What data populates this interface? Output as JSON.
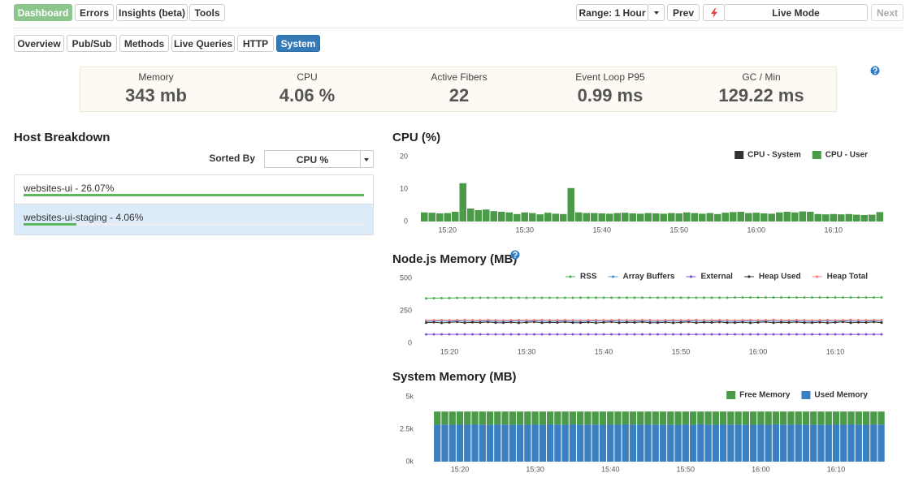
{
  "nav": {
    "tabs": [
      "Dashboard",
      "Errors",
      "Insights (beta)",
      "Tools"
    ],
    "range": "Range: 1 Hour",
    "prev": "Prev",
    "live_mode": "Live Mode",
    "next": "Next"
  },
  "subnav": {
    "tabs": [
      "Overview",
      "Pub/Sub",
      "Methods",
      "Live Queries",
      "HTTP",
      "System"
    ]
  },
  "stats": [
    {
      "label": "Memory",
      "value": "343 mb"
    },
    {
      "label": "CPU",
      "value": "4.06 %"
    },
    {
      "label": "Active Fibers",
      "value": "22"
    },
    {
      "label": "Event Loop P95",
      "value": "0.99 ms"
    },
    {
      "label": "GC / Min",
      "value": "129.22 ms"
    }
  ],
  "host_breakdown": {
    "title": "Host Breakdown",
    "sort_label": "Sorted By",
    "sort_value": "CPU %",
    "hosts": [
      {
        "label": "websites-ui - 26.07%",
        "value": 26.07
      },
      {
        "label": "websites-ui-staging - 4.06%",
        "value": 4.06
      }
    ]
  },
  "chart_data": [
    {
      "type": "bar",
      "title": "CPU (%)",
      "stacked": true,
      "legend": "top-right",
      "x": [
        "15:17",
        "15:18",
        "15:19",
        "15:20",
        "15:21",
        "15:22",
        "15:23",
        "15:24",
        "15:25",
        "15:26",
        "15:27",
        "15:28",
        "15:29",
        "15:30",
        "15:31",
        "15:32",
        "15:33",
        "15:34",
        "15:35",
        "15:36",
        "15:37",
        "15:38",
        "15:39",
        "15:40",
        "15:41",
        "15:42",
        "15:43",
        "15:44",
        "15:45",
        "15:46",
        "15:47",
        "15:48",
        "15:49",
        "15:50",
        "15:51",
        "15:52",
        "15:53",
        "15:54",
        "15:55",
        "15:56",
        "15:57",
        "15:58",
        "15:59",
        "16:00",
        "16:01",
        "16:02",
        "16:03",
        "16:04",
        "16:05",
        "16:06",
        "16:07",
        "16:08",
        "16:09",
        "16:10",
        "16:11",
        "16:12",
        "16:13",
        "16:14",
        "16:15",
        "16:16"
      ],
      "xticks": [
        "15:20",
        "15:30",
        "15:40",
        "15:50",
        "16:00",
        "16:10"
      ],
      "ylim": [
        0,
        20
      ],
      "yticks": [
        0,
        10,
        20
      ],
      "series": [
        {
          "name": "CPU - System",
          "color": "#333333",
          "values": [
            0,
            0,
            0,
            0,
            0,
            0,
            0,
            0,
            0,
            0,
            0,
            0,
            0,
            0,
            0,
            0,
            0,
            0,
            0,
            0,
            0,
            0,
            0,
            0,
            0,
            0,
            0,
            0,
            0,
            0,
            0,
            0,
            0,
            0,
            0,
            0,
            0,
            0,
            0,
            0,
            0,
            0,
            0,
            0,
            0,
            0,
            0,
            0,
            0,
            0,
            0,
            0,
            0,
            0,
            0,
            0,
            0,
            0,
            0,
            0
          ]
        },
        {
          "name": "CPU - User",
          "color": "#4a9a48",
          "values": [
            2.8,
            2.7,
            2.5,
            2.6,
            3.0,
            11.8,
            4.0,
            3.5,
            3.7,
            3.2,
            3.0,
            2.8,
            2.3,
            2.8,
            2.6,
            2.2,
            2.7,
            2.4,
            2.3,
            10.3,
            2.8,
            2.6,
            2.6,
            2.5,
            2.4,
            2.6,
            2.7,
            2.5,
            2.4,
            2.6,
            2.5,
            2.4,
            2.6,
            2.5,
            2.8,
            2.6,
            2.4,
            2.6,
            2.3,
            2.7,
            2.9,
            3.0,
            2.6,
            2.7,
            2.5,
            2.4,
            2.8,
            3.0,
            2.8,
            3.1,
            3.0,
            2.3,
            2.2,
            2.3,
            2.2,
            2.3,
            2.1,
            2.0,
            2.1,
            2.9
          ]
        }
      ]
    },
    {
      "type": "line",
      "title": "Node.js Memory (MB)",
      "legend": "top-right",
      "markers": true,
      "x": [
        "15:17",
        "15:18",
        "15:19",
        "15:20",
        "15:21",
        "15:22",
        "15:23",
        "15:24",
        "15:25",
        "15:26",
        "15:27",
        "15:28",
        "15:29",
        "15:30",
        "15:31",
        "15:32",
        "15:33",
        "15:34",
        "15:35",
        "15:36",
        "15:37",
        "15:38",
        "15:39",
        "15:40",
        "15:41",
        "15:42",
        "15:43",
        "15:44",
        "15:45",
        "15:46",
        "15:47",
        "15:48",
        "15:49",
        "15:50",
        "15:51",
        "15:52",
        "15:53",
        "15:54",
        "15:55",
        "15:56",
        "15:57",
        "15:58",
        "15:59",
        "16:00",
        "16:01",
        "16:02",
        "16:03",
        "16:04",
        "16:05",
        "16:06",
        "16:07",
        "16:08",
        "16:09",
        "16:10",
        "16:11",
        "16:12",
        "16:13",
        "16:14",
        "16:15",
        "16:16"
      ],
      "xticks": [
        "15:20",
        "15:30",
        "15:40",
        "15:50",
        "16:00",
        "16:10"
      ],
      "ylim": [
        0,
        500
      ],
      "yticks": [
        0,
        250,
        500
      ],
      "series": [
        {
          "name": "RSS",
          "color": "#4caf50",
          "values": [
            345,
            347,
            348,
            348,
            349,
            349,
            349,
            350,
            350,
            350,
            350,
            350,
            350,
            350,
            350,
            350,
            350,
            350,
            350,
            350,
            351,
            351,
            351,
            351,
            351,
            351,
            351,
            351,
            351,
            351,
            351,
            351,
            351,
            351,
            351,
            351,
            351,
            351,
            351,
            351,
            352,
            352,
            352,
            352,
            352,
            352,
            352,
            352,
            352,
            352,
            352,
            352,
            352,
            352,
            352,
            352,
            352,
            352,
            352,
            352
          ]
        },
        {
          "name": "Array Buffers",
          "color": "#4a90d9",
          "values": [
            168,
            170,
            171,
            169,
            172,
            170,
            168,
            171,
            170,
            169,
            168,
            170,
            171,
            169,
            172,
            170,
            168,
            171,
            170,
            169,
            168,
            170,
            171,
            169,
            172,
            170,
            168,
            171,
            170,
            169,
            168,
            170,
            171,
            169,
            172,
            170,
            168,
            171,
            170,
            169,
            168,
            170,
            171,
            169,
            172,
            170,
            168,
            171,
            170,
            169,
            168,
            170,
            171,
            169,
            172,
            170,
            168,
            171,
            170,
            169
          ]
        },
        {
          "name": "External",
          "color": "#7b4fd6",
          "values": [
            68,
            68,
            68,
            68,
            68,
            68,
            68,
            68,
            68,
            68,
            68,
            68,
            68,
            68,
            68,
            68,
            68,
            68,
            68,
            68,
            68,
            68,
            68,
            68,
            68,
            68,
            68,
            68,
            68,
            68,
            68,
            68,
            68,
            68,
            68,
            68,
            68,
            68,
            68,
            68,
            68,
            68,
            68,
            68,
            68,
            68,
            68,
            68,
            68,
            68,
            68,
            68,
            68,
            68,
            68,
            68,
            68,
            68,
            68,
            68
          ]
        },
        {
          "name": "Heap Used",
          "color": "#333333",
          "values": [
            158,
            162,
            156,
            160,
            164,
            157,
            161,
            159,
            163,
            158,
            158,
            162,
            156,
            160,
            164,
            157,
            161,
            159,
            163,
            158,
            158,
            162,
            156,
            160,
            164,
            157,
            161,
            159,
            163,
            158,
            158,
            162,
            156,
            160,
            164,
            157,
            161,
            159,
            163,
            158,
            158,
            162,
            156,
            160,
            164,
            157,
            161,
            159,
            163,
            158,
            158,
            162,
            156,
            160,
            164,
            157,
            161,
            159,
            163,
            158
          ]
        },
        {
          "name": "Heap Total",
          "color": "#f08080",
          "values": [
            176,
            178,
            179,
            177,
            178,
            180,
            178,
            177,
            179,
            178,
            176,
            178,
            179,
            177,
            178,
            180,
            178,
            177,
            179,
            178,
            176,
            178,
            179,
            177,
            178,
            180,
            178,
            177,
            179,
            178,
            176,
            178,
            179,
            177,
            178,
            180,
            178,
            177,
            179,
            178,
            176,
            178,
            179,
            177,
            178,
            180,
            178,
            177,
            179,
            178,
            176,
            178,
            179,
            177,
            178,
            180,
            178,
            177,
            179,
            178
          ]
        }
      ]
    },
    {
      "type": "bar",
      "title": "System Memory (MB)",
      "stacked": true,
      "legend": "top-right",
      "x": [
        "15:17",
        "15:18",
        "15:19",
        "15:20",
        "15:21",
        "15:22",
        "15:23",
        "15:24",
        "15:25",
        "15:26",
        "15:27",
        "15:28",
        "15:29",
        "15:30",
        "15:31",
        "15:32",
        "15:33",
        "15:34",
        "15:35",
        "15:36",
        "15:37",
        "15:38",
        "15:39",
        "15:40",
        "15:41",
        "15:42",
        "15:43",
        "15:44",
        "15:45",
        "15:46",
        "15:47",
        "15:48",
        "15:49",
        "15:50",
        "15:51",
        "15:52",
        "15:53",
        "15:54",
        "15:55",
        "15:56",
        "15:57",
        "15:58",
        "15:59",
        "16:00",
        "16:01",
        "16:02",
        "16:03",
        "16:04",
        "16:05",
        "16:06",
        "16:07",
        "16:08",
        "16:09",
        "16:10",
        "16:11",
        "16:12",
        "16:13",
        "16:14",
        "16:15",
        "16:16"
      ],
      "xticks": [
        "15:20",
        "15:30",
        "15:40",
        "15:50",
        "16:00",
        "16:10"
      ],
      "ylim": [
        0,
        5000
      ],
      "yticks": [
        {
          "value": 0,
          "label": "0k"
        },
        {
          "value": 2500,
          "label": "2.5k"
        },
        {
          "value": 5000,
          "label": "5k"
        }
      ],
      "series": [
        {
          "name": "Free Memory",
          "color": "#4a9a48",
          "values": [
            1010,
            1000,
            1020,
            990,
            1010,
            980,
            1000,
            1010,
            990,
            1000,
            1010,
            1000,
            1020,
            990,
            1010,
            980,
            1000,
            1010,
            990,
            1000,
            1010,
            1000,
            1020,
            990,
            1010,
            980,
            1000,
            1010,
            990,
            1000,
            1010,
            1000,
            1020,
            990,
            1010,
            980,
            1000,
            1010,
            990,
            1000,
            1010,
            1000,
            1020,
            990,
            1010,
            980,
            1000,
            1010,
            990,
            1000,
            1010,
            1000,
            1020,
            990,
            1010,
            980,
            1000,
            1010,
            990,
            1000
          ]
        },
        {
          "name": "Used Memory",
          "color": "#3a7fc0",
          "values": [
            2850,
            2860,
            2840,
            2870,
            2850,
            2880,
            2860,
            2850,
            2870,
            2860,
            2850,
            2860,
            2840,
            2870,
            2850,
            2880,
            2860,
            2850,
            2870,
            2860,
            2850,
            2860,
            2840,
            2870,
            2850,
            2880,
            2860,
            2850,
            2870,
            2860,
            2850,
            2860,
            2840,
            2870,
            2850,
            2880,
            2860,
            2850,
            2870,
            2860,
            2850,
            2860,
            2840,
            2870,
            2850,
            2880,
            2860,
            2850,
            2870,
            2860,
            2850,
            2860,
            2840,
            2870,
            2850,
            2880,
            2860,
            2850,
            2870,
            2860
          ]
        }
      ]
    }
  ]
}
